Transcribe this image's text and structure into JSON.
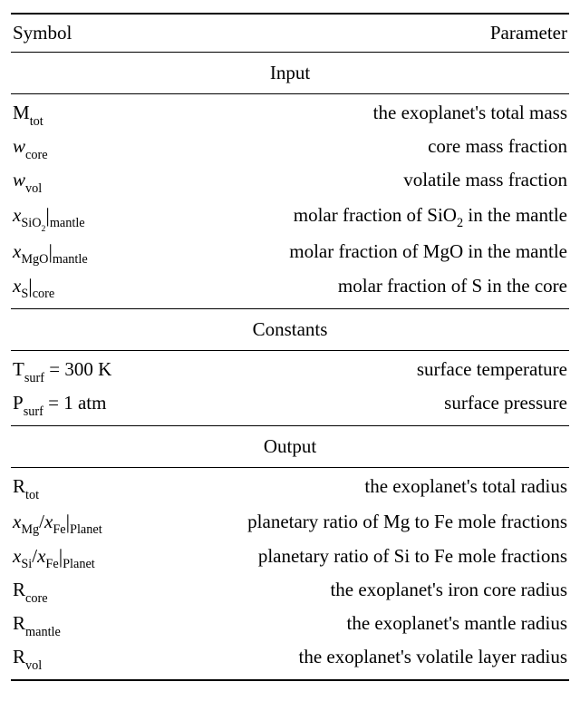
{
  "header": {
    "left": "Symbol",
    "right": "Parameter"
  },
  "sections": {
    "input": {
      "title": "Input",
      "rows": [
        {
          "sym_html": "M<span class='sub'>tot</span>",
          "param": "the exoplanet's total mass"
        },
        {
          "sym_html": "<span class='italic'>w</span><span class='sub'>core</span>",
          "param": "core mass fraction"
        },
        {
          "sym_html": "<span class='italic'>w</span><span class='sub'>vol</span>",
          "param": "volatile mass fraction"
        },
        {
          "sym_html": "<span class='italic'>x</span><span class='sub'>SiO<span class='sub2'>2</span></span><span class='bar'>|</span><span class='sub'>mantle</span>",
          "param_html": "molar fraction of SiO<span class='sub'>2</span> in the mantle"
        },
        {
          "sym_html": "<span class='italic'>x</span><span class='sub'>MgO</span><span class='bar'>|</span><span class='sub'>mantle</span>",
          "param": "molar fraction of MgO in the mantle"
        },
        {
          "sym_html": "<span class='italic'>x</span><span class='sub'>S</span><span class='bar'>|</span><span class='sub'>core</span>",
          "param": "molar fraction of S in the core"
        }
      ]
    },
    "constants": {
      "title": "Constants",
      "rows": [
        {
          "sym_html": "T<span class='sub'>surf</span> = 300 K",
          "param": "surface temperature"
        },
        {
          "sym_html": "P<span class='sub'>surf</span> = 1 atm",
          "param": "surface pressure"
        }
      ]
    },
    "output": {
      "title": "Output",
      "rows": [
        {
          "sym_html": "R<span class='sub'>tot</span>",
          "param": "the exoplanet's total radius"
        },
        {
          "sym_html": "<span class='italic'>x</span><span class='sub'>Mg</span>/<span class='italic'>x</span><span class='sub'>Fe</span><span class='bar'>|</span><span class='sub'>Planet</span>",
          "param": "planetary ratio of Mg to Fe mole fractions"
        },
        {
          "sym_html": "<span class='italic'>x</span><span class='sub'>Si</span>/<span class='italic'>x</span><span class='sub'>Fe</span><span class='bar'>|</span><span class='sub'>Planet</span>",
          "param": "planetary ratio of Si to Fe mole fractions"
        },
        {
          "sym_html": "R<span class='sub'>core</span>",
          "param": "the exoplanet's iron core radius"
        },
        {
          "sym_html": "R<span class='sub'>mantle</span>",
          "param": "the exoplanet's mantle radius"
        },
        {
          "sym_html": "R<span class='sub'>vol</span>",
          "param": "the exoplanet's volatile layer radius"
        }
      ]
    }
  }
}
